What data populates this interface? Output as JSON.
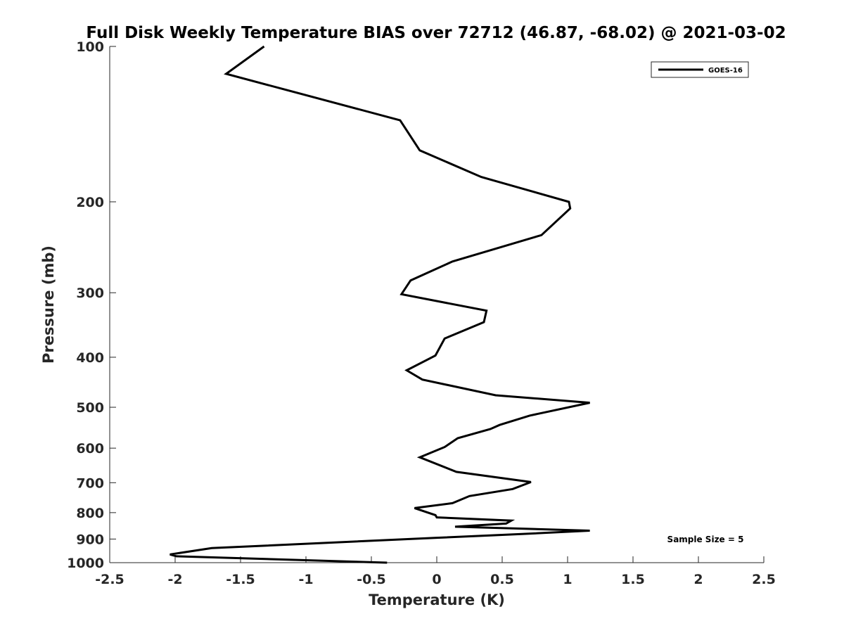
{
  "chart_data": {
    "type": "line",
    "title": "Full Disk Weekly Temperature BIAS over 72712 (46.87, -68.02) @ 2021-03-02",
    "xlabel": "Temperature (K)",
    "ylabel": "Pressure (mb)",
    "xlim": [
      -2.5,
      2.5
    ],
    "ylim": [
      100,
      1000
    ],
    "y_scale": "log",
    "y_reversed": true,
    "grid": false,
    "legend_position": "top-right",
    "x_ticks": [
      "-2.5",
      "-2",
      "-1.5",
      "-1",
      "-0.5",
      "0",
      "0.5",
      "1",
      "1.5",
      "2",
      "2.5"
    ],
    "y_ticks": [
      "100",
      "200",
      "300",
      "400",
      "500",
      "600",
      "700",
      "800",
      "900",
      "1000"
    ],
    "series": [
      {
        "name": "GOES-16",
        "color": "#000000",
        "x": [
          -1.32,
          -1.61,
          -0.28,
          -0.13,
          0.34,
          1.01,
          1.02,
          0.8,
          0.12,
          -0.2,
          -0.27,
          0.38,
          0.36,
          0.06,
          -0.01,
          -0.23,
          -0.11,
          0.45,
          1.17,
          0.71,
          0.48,
          0.41,
          0.16,
          0.06,
          -0.13,
          0.15,
          0.72,
          0.58,
          0.25,
          0.12,
          -0.17,
          -0.01,
          0.0,
          0.57,
          0.53,
          0.14,
          1.17,
          0.65,
          0.0,
          -1.72,
          -2.04,
          -1.99,
          -0.38
        ],
        "y": [
          100,
          113,
          139,
          159,
          179,
          200,
          206,
          232,
          261,
          284,
          302,
          325,
          342,
          368,
          397,
          424,
          442,
          474,
          490,
          519,
          541,
          551,
          574,
          597,
          625,
          667,
          698,
          720,
          743,
          767,
          784,
          809,
          817,
          829,
          840,
          852,
          867,
          880,
          895,
          937,
          964,
          972,
          1000
        ]
      }
    ],
    "annotations": [
      {
        "text": "Sample Size = 5"
      }
    ]
  }
}
